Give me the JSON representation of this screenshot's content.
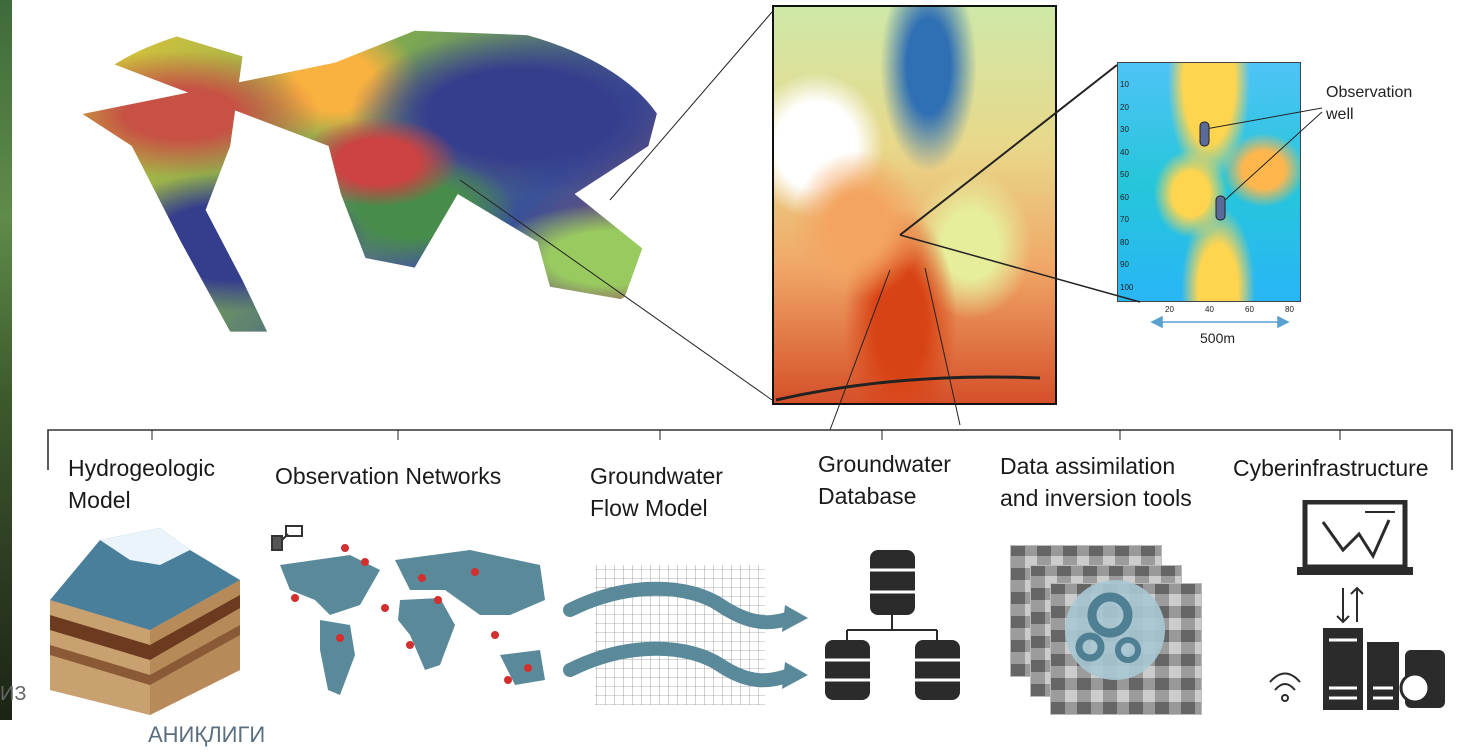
{
  "inset": {
    "annotation_label": "Observation\nwell",
    "scale_label": "500m",
    "y_ticks": [
      "10",
      "20",
      "30",
      "40",
      "50",
      "60",
      "70",
      "80",
      "90",
      "100"
    ],
    "x_ticks": [
      "20",
      "40",
      "60",
      "80"
    ]
  },
  "components": [
    {
      "label": "Hydrogeologic\nModel",
      "icon": "terrain-block-icon"
    },
    {
      "label": "Observation Networks",
      "icon": "satellite-world-map-icon"
    },
    {
      "label": "Groundwater\nFlow Model",
      "icon": "flow-grid-icon"
    },
    {
      "label": "Groundwater\nDatabase",
      "icon": "database-tree-icon"
    },
    {
      "label": "Data assimilation\nand inversion tools",
      "icon": "gears-pixels-icon"
    },
    {
      "label": "Cyberinfrastructure",
      "icon": "laptop-server-icon"
    }
  ],
  "overlay_text": {
    "left_fragment": "ИЗ",
    "bottom_fragment": "АНИҚЛИГИ"
  },
  "colors": {
    "map_blue": "#5a8a9a",
    "pin_red": "#d32f2f",
    "icon_dark": "#2b2b2b",
    "scale_blue": "#5aa0d0"
  }
}
